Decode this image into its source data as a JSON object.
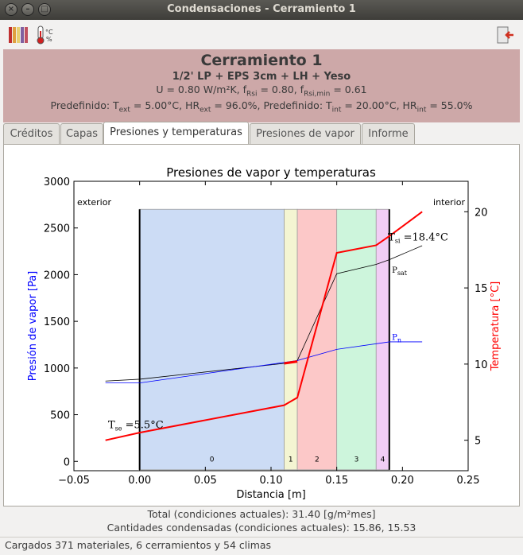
{
  "window": {
    "title": "Condensaciones - Cerramiento 1"
  },
  "toolbar": {
    "materials_icon": "materials-icon",
    "climate_icon": "thermometer-icon",
    "exit_icon": "exit-icon"
  },
  "header": {
    "title": "Cerramiento 1",
    "composition": "1/2' LP + EPS 3cm + LH + Yeso",
    "line3_u": "U = 0.80 W/m²K, f",
    "line3_rsi_sub": "Rsi",
    "line3_mid": " = 0.80, f",
    "line3_rsimin_sub": "Rsi,min",
    "line3_end": " = 0.61",
    "line4_a": "Predefinido: T",
    "line4_ext_sub": "ext",
    "line4_b": " = 5.00°C, HR",
    "line4_ext_sub2": "ext",
    "line4_c": " = 96.0%, Predefinido: T",
    "line4_int_sub": "int",
    "line4_d": " = 20.00°C, HR",
    "line4_int_sub2": "int",
    "line4_e": " = 55.0%"
  },
  "tabs": [
    "Créditos",
    "Capas",
    "Presiones y temperaturas",
    "Presiones de vapor",
    "Informe"
  ],
  "active_tab": 2,
  "chart_data": {
    "type": "line",
    "title": "Presiones de vapor y temperaturas",
    "xlabel": "Distancia [m]",
    "ylabel": "Presión de vapor [Pa]",
    "y2label": "Temperatura [°C]",
    "xlim": [
      -0.05,
      0.25
    ],
    "ylim": [
      -100,
      3000
    ],
    "y2lim": [
      3,
      22
    ],
    "xticks": [
      "−0.05",
      "0.00",
      "0.05",
      "0.10",
      "0.15",
      "0.20",
      "0.25"
    ],
    "xtick_values": [
      -0.05,
      0,
      0.05,
      0.1,
      0.15,
      0.2,
      0.25
    ],
    "yticks": [
      "0",
      "500",
      "1000",
      "1500",
      "2000",
      "2500",
      "3000"
    ],
    "ytick_values": [
      0,
      500,
      1000,
      1500,
      2000,
      2500,
      3000
    ],
    "y2ticks": [
      "5",
      "10",
      "15",
      "20"
    ],
    "y2tick_values": [
      5,
      10,
      15,
      20
    ],
    "left_label": "exterior",
    "right_label": "interior",
    "layers": [
      {
        "label": "0",
        "x0": 0.0,
        "x1": 0.11,
        "color": "#ccdcf5"
      },
      {
        "label": "1",
        "x0": 0.11,
        "x1": 0.12,
        "color": "#f4f5d2"
      },
      {
        "label": "2",
        "x0": 0.12,
        "x1": 0.15,
        "color": "#fcc8c8"
      },
      {
        "label": "3",
        "x0": 0.15,
        "x1": 0.18,
        "color": "#cdf5dc"
      },
      {
        "label": "4",
        "x0": 0.18,
        "x1": 0.19,
        "color": "#f1cdf5"
      }
    ],
    "series": [
      {
        "name": "Psat",
        "color": "#000000",
        "axis": "left",
        "x": [
          -0.026,
          0.0,
          0.11,
          0.12,
          0.15,
          0.18,
          0.19,
          0.215
        ],
        "y": [
          860,
          880,
          1050,
          1080,
          2010,
          2110,
          2160,
          2310
        ]
      },
      {
        "name": "Pn",
        "color": "#0000ff",
        "axis": "left",
        "x": [
          -0.026,
          0.0,
          0.11,
          0.12,
          0.15,
          0.18,
          0.19,
          0.215
        ],
        "y": [
          840,
          840,
          1060,
          1080,
          1200,
          1260,
          1280,
          1280
        ]
      },
      {
        "name": "Temperatura",
        "color": "#ff0000",
        "axis": "right",
        "x": [
          -0.026,
          0.0,
          0.11,
          0.12,
          0.15,
          0.18,
          0.19,
          0.215
        ],
        "y": [
          5.0,
          5.5,
          7.3,
          7.8,
          17.3,
          17.8,
          18.4,
          20.0
        ]
      }
    ],
    "condensation_segment": {
      "x": [
        0.11,
        0.12
      ],
      "y": [
        1050,
        1070
      ],
      "color": "#ff0000"
    },
    "annotations": {
      "tsi_main": "T",
      "tsi_sub": "si",
      "tsi_value": " =18.4°C",
      "tse_main": "T",
      "tse_sub": "se",
      "tse_value": " =5.5°C",
      "psat_main": "P",
      "psat_sub": "sat",
      "pn_main": "P",
      "pn_sub": "n"
    },
    "grid": false
  },
  "summary": {
    "total": "Total (condiciones actuales): 31.40 [g/m²mes]",
    "condensed": "Cantidades condensadas (condiciones actuales): 15.86, 15.53"
  },
  "status": "Cargados 371 materiales, 6 cerramientos y 54 climas"
}
